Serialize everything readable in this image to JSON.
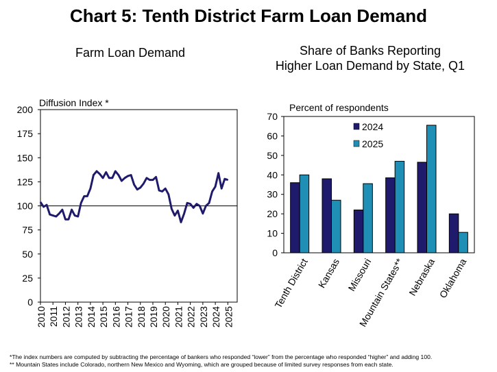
{
  "title": "Chart 5: Tenth District Farm Loan Demand",
  "footnotes": [
    "*The index numbers are computed by subtracting the percentage of bankers who responded “lower” from the percentage who responded “higher” and adding 100.",
    "** Mountain States include Colorado, northern New Mexico and Wyoming, which are grouped because of limited survey responses from each state."
  ],
  "chart_data": [
    {
      "type": "line",
      "title": "Farm Loan Demand",
      "ylabel": "Diffusion Index *",
      "xlabel": "",
      "ylim": [
        0,
        200
      ],
      "yticks": [
        0,
        25,
        50,
        75,
        100,
        125,
        150,
        175,
        200
      ],
      "xlim": [
        2010,
        2025.75
      ],
      "xticks": [
        "2010",
        "2011",
        "2012",
        "2013",
        "2014",
        "2015",
        "2016",
        "2017",
        "2018",
        "2019",
        "2020",
        "2021",
        "2022",
        "2023",
        "2024",
        "2025"
      ],
      "reference_line": 100,
      "line_color": "#1f1a6b",
      "series": [
        {
          "x": [
            2010.0,
            2010.25,
            2010.5,
            2010.75,
            2011.0,
            2011.25,
            2011.5,
            2011.75,
            2012.0,
            2012.25,
            2012.5,
            2012.75,
            2013.0,
            2013.25,
            2013.5,
            2013.75,
            2014.0,
            2014.25,
            2014.5,
            2014.75,
            2015.0,
            2015.25,
            2015.5,
            2015.75,
            2016.0,
            2016.25,
            2016.5,
            2016.75,
            2017.0,
            2017.25,
            2017.5,
            2017.75,
            2018.0,
            2018.25,
            2018.5,
            2018.75,
            2019.0,
            2019.25,
            2019.5,
            2019.75,
            2020.0,
            2020.25,
            2020.5,
            2020.75,
            2021.0,
            2021.25,
            2021.5,
            2021.75,
            2022.0,
            2022.25,
            2022.5,
            2022.75,
            2023.0,
            2023.25,
            2023.5,
            2023.75,
            2024.0,
            2024.25,
            2024.5,
            2024.75,
            2025.0
          ],
          "values": [
            104,
            99,
            101,
            91,
            90,
            89,
            92,
            96,
            86,
            86,
            96,
            90,
            89,
            103,
            110,
            110,
            118,
            132,
            136,
            133,
            129,
            135,
            129,
            129,
            136,
            132,
            126,
            129,
            131,
            132,
            122,
            117,
            119,
            123,
            129,
            127,
            127,
            130,
            116,
            115,
            118,
            112,
            97,
            90,
            95,
            83,
            92,
            103,
            102,
            98,
            102,
            100,
            92,
            100,
            103,
            115,
            120,
            134,
            118,
            128,
            127
          ]
        }
      ]
    },
    {
      "type": "bar",
      "title": "Share of Banks Reporting Higher Loan Demand by State, Q1",
      "ylabel": "Percent of respondents",
      "xlabel": "",
      "ylim": [
        0,
        70
      ],
      "yticks": [
        0,
        10,
        20,
        30,
        40,
        50,
        60,
        70
      ],
      "legend_placement": "top-center",
      "categories": [
        "Tenth District",
        "Kansas",
        "Missouri",
        "Mountain States**",
        "Nebraska",
        "Oklahoma"
      ],
      "series": [
        {
          "name": "2024",
          "color": "#1f1a6b",
          "values": [
            36,
            38,
            22,
            38.5,
            46.5,
            20
          ]
        },
        {
          "name": "2025",
          "color": "#1f8fb5",
          "values": [
            40,
            27,
            35.5,
            47,
            65.5,
            10.5
          ]
        }
      ]
    }
  ]
}
